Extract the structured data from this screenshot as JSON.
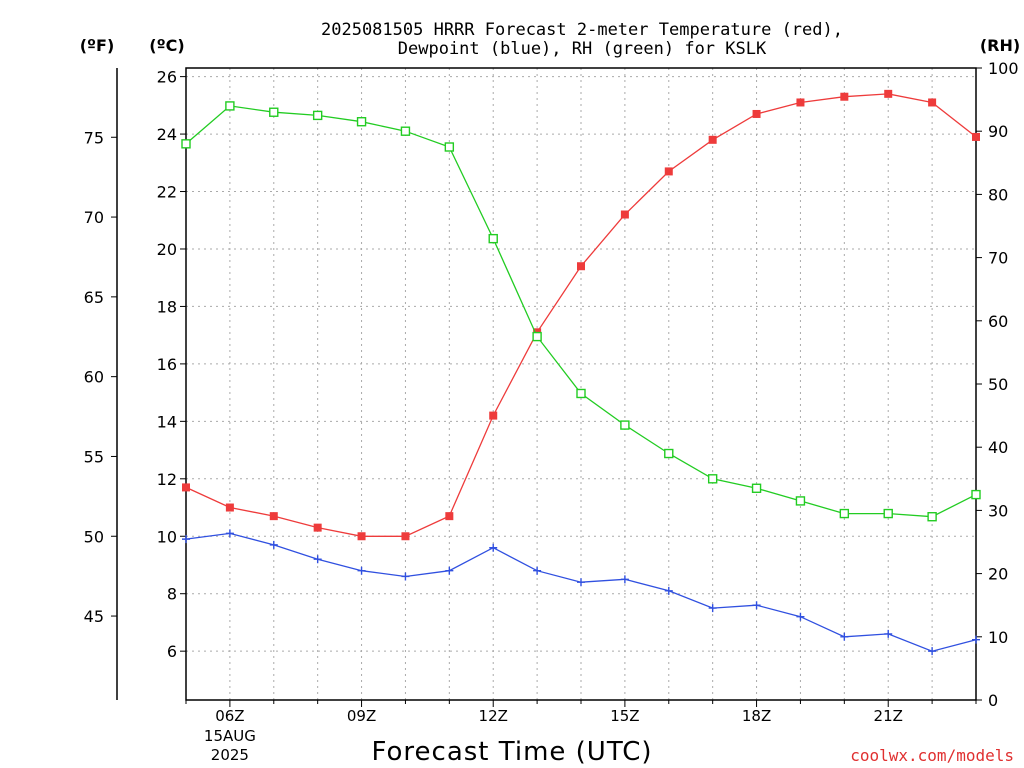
{
  "chart_data": {
    "type": "line",
    "title_line1": "2025081505 HRRR Forecast 2-meter Temperature (red),",
    "title_line2": "Dewpoint (blue), RH (green) for KSLK",
    "xlabel": "Forecast Time (UTC)",
    "units": {
      "fahrenheit": "(ºF)",
      "celsius": "(ºC)",
      "rh": "(RH)"
    },
    "x": [
      5,
      6,
      7,
      8,
      9,
      10,
      11,
      12,
      13,
      14,
      15,
      16,
      17,
      18,
      19,
      20,
      21,
      22,
      23
    ],
    "xlim": [
      5,
      23
    ],
    "x_ticks": [
      {
        "x": 6,
        "label": "06Z",
        "sublabel1": "15AUG",
        "sublabel2": "2025"
      },
      {
        "x": 9,
        "label": "09Z"
      },
      {
        "x": 12,
        "label": "12Z"
      },
      {
        "x": 15,
        "label": "15Z"
      },
      {
        "x": 18,
        "label": "18Z"
      },
      {
        "x": 21,
        "label": "21Z"
      }
    ],
    "ylim_celsius": [
      4.3,
      26.3
    ],
    "y_ticks_celsius": [
      "6",
      "8",
      "10",
      "12",
      "14",
      "16",
      "18",
      "20",
      "22",
      "24",
      "26"
    ],
    "y_ticks_fahrenheit": [
      "45",
      "50",
      "55",
      "60",
      "65",
      "70",
      "75"
    ],
    "ylim_rh": [
      0,
      100
    ],
    "y_ticks_rh": [
      "0",
      "10",
      "20",
      "30",
      "40",
      "50",
      "60",
      "70",
      "80",
      "90",
      "100"
    ],
    "grid": true,
    "series": [
      {
        "key": "temperature",
        "axis": "celsius",
        "color": "#ee3b3b",
        "marker": "filled-square",
        "values": [
          11.7,
          11.0,
          10.7,
          10.3,
          10.0,
          10.0,
          10.7,
          14.2,
          17.1,
          19.4,
          21.2,
          22.7,
          23.8,
          24.7,
          25.1,
          25.3,
          25.4,
          25.1,
          23.9
        ]
      },
      {
        "key": "dewpoint",
        "axis": "celsius",
        "color": "#3050e0",
        "marker": "plus",
        "values": [
          9.9,
          10.1,
          9.7,
          9.2,
          8.8,
          8.6,
          8.8,
          9.6,
          8.8,
          8.4,
          8.5,
          8.1,
          7.5,
          7.6,
          7.2,
          6.5,
          6.6,
          6.0,
          6.4
        ]
      },
      {
        "key": "rh",
        "axis": "rh",
        "color": "#22cc22",
        "marker": "open-square",
        "values": [
          88,
          94,
          93,
          92.5,
          91.5,
          90,
          87.5,
          73,
          57.5,
          48.5,
          43.5,
          39,
          35,
          33.5,
          31.5,
          29.5,
          29.5,
          29,
          32.5
        ]
      }
    ]
  },
  "credit": "coolwx.com/models"
}
